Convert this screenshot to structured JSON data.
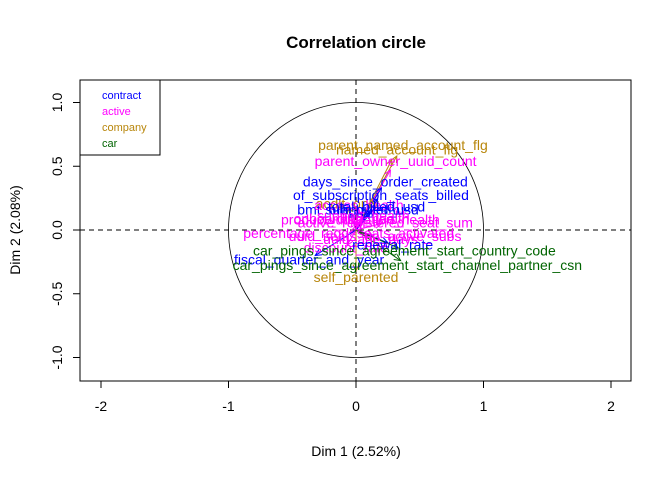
{
  "chart_data": {
    "type": "scatter",
    "title": "Correlation circle",
    "xlabel": "Dim 1 (2.52%)",
    "ylabel": "Dim 2 (2.08%)",
    "xlim": [
      -2.2,
      2.2
    ],
    "ylim": [
      -1.2,
      1.2
    ],
    "x_ticks": [
      "-2",
      "-1",
      "0",
      "1",
      "2"
    ],
    "y_ticks": [
      "-1.0",
      "-0.5",
      "0.0",
      "0.5",
      "1.0"
    ],
    "unit_circle": true,
    "reference_lines": "dashed axes through origin",
    "legend": {
      "position": "top-left",
      "entries": [
        {
          "label": "contract",
          "color": "#0000ff"
        },
        {
          "label": "active",
          "color": "#ff00ff"
        },
        {
          "label": "company",
          "color": "#b8860b"
        },
        {
          "label": "car",
          "color": "#006400"
        }
      ]
    },
    "variables": [
      {
        "label": "named_account_flg",
        "group": "company",
        "x": 0.28,
        "y": 0.55
      },
      {
        "label": "parent_named_account_flg",
        "group": "company",
        "x": 0.32,
        "y": 0.58
      },
      {
        "label": "parent_owner_uuid_count",
        "group": "active",
        "x": 0.27,
        "y": 0.47
      },
      {
        "label": "acdlt_only",
        "group": "company",
        "x": -0.06,
        "y": 0.18
      },
      {
        "label": "bmt_billing_term",
        "group": "contract",
        "x": -0.05,
        "y": 0.14
      },
      {
        "label": "days_since_order_created",
        "group": "contract",
        "x": 0.2,
        "y": 0.33
      },
      {
        "label": "access_health",
        "group": "active",
        "x": 0.02,
        "y": 0.17
      },
      {
        "label": "of_subscription_seats_billed",
        "group": "contract",
        "x": 0.17,
        "y": 0.24
      },
      {
        "label": "onboarding_health",
        "group": "active",
        "x": -0.03,
        "y": 0.08
      },
      {
        "label": "sub_billed_usd",
        "group": "contract",
        "x": 0.11,
        "y": 0.14
      },
      {
        "label": "product_utilization_health",
        "group": "active",
        "x": 0.03,
        "y": 0.07
      },
      {
        "label": "support_health",
        "group": "active",
        "x": 0.05,
        "y": 0.1
      },
      {
        "label": "total_billed_usd",
        "group": "contract",
        "x": 0.14,
        "y": 0.16
      },
      {
        "label": "active_registered_seat_sum",
        "group": "active",
        "x": 0.2,
        "y": 0.05
      },
      {
        "label": "percentage_regd_seats_activated",
        "group": "active",
        "x": -0.05,
        "y": -0.02
      },
      {
        "label": "uuid_seats_on_active_subs",
        "group": "active",
        "x": 0.13,
        "y": -0.04
      },
      {
        "label": "discount_rate",
        "group": "active",
        "x": -0.07,
        "y": -0.12
      },
      {
        "label": "uuid_age_days",
        "group": "active",
        "x": 0.1,
        "y": -0.06
      },
      {
        "label": "renewal_rate",
        "group": "contract",
        "x": 0.25,
        "y": -0.1
      },
      {
        "label": "fiscal_quarter_and_year",
        "group": "contract",
        "x": -0.32,
        "y": -0.2
      },
      {
        "label": "car_pings_since_agreement_start_country_code",
        "group": "car",
        "x": 0.33,
        "y": -0.14
      },
      {
        "label": "car_pings_since_agreement_start_channel_partner_csn",
        "group": "car",
        "x": 0.35,
        "y": -0.24
      },
      {
        "label": "self_parented",
        "group": "company",
        "x": 0.0,
        "y": -0.32
      }
    ]
  }
}
